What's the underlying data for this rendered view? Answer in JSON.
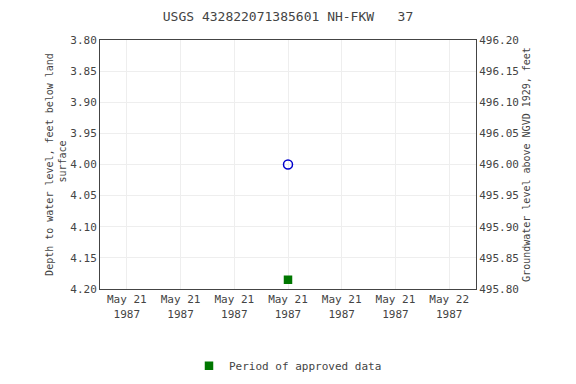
{
  "chart_data": {
    "type": "scatter",
    "title": "USGS 432822071385601 NH-FKW   37",
    "ylabel": "Depth to water level, feet below land\n surface",
    "y2label": "Groundwater level above NGVD 1929, feet",
    "categories": [
      "May 21\n1987",
      "May 21\n1987",
      "May 21\n1987",
      "May 21\n1987",
      "May 21\n1987",
      "May 21\n1987",
      "May 22\n1987"
    ],
    "series": [
      {
        "color": "#0000cc",
        "marker": "circle-open",
        "values": [
          null,
          null,
          null,
          4.0,
          null,
          null,
          null
        ]
      },
      {
        "name": "Period of approved data",
        "color": "#007700",
        "marker": "square",
        "values": [
          null,
          null,
          null,
          4.185,
          null,
          null,
          null
        ]
      }
    ],
    "ylim": [
      4.2,
      3.8
    ],
    "yticks": [
      {
        "value": 3.8,
        "label": "3.80"
      },
      {
        "value": 3.85,
        "label": "3.85"
      },
      {
        "value": 3.9,
        "label": "3.90"
      },
      {
        "value": 3.95,
        "label": "3.95"
      },
      {
        "value": 4.0,
        "label": "4.00"
      },
      {
        "value": 4.05,
        "label": "4.05"
      },
      {
        "value": 4.1,
        "label": "4.10"
      },
      {
        "value": 4.15,
        "label": "4.15"
      },
      {
        "value": 4.2,
        "label": "4.20"
      }
    ],
    "y2lim": [
      495.8,
      496.2
    ],
    "y2ticks": [
      {
        "value": 496.2,
        "label": "496.20"
      },
      {
        "value": 496.15,
        "label": "496.15"
      },
      {
        "value": 496.1,
        "label": "496.10"
      },
      {
        "value": 496.05,
        "label": "496.05"
      },
      {
        "value": 496.0,
        "label": "496.00"
      },
      {
        "value": 495.95,
        "label": "495.95"
      },
      {
        "value": 495.9,
        "label": "495.90"
      },
      {
        "value": 495.85,
        "label": "495.85"
      },
      {
        "value": 495.8,
        "label": "495.80"
      }
    ],
    "grid": true,
    "legend": "bottom"
  }
}
